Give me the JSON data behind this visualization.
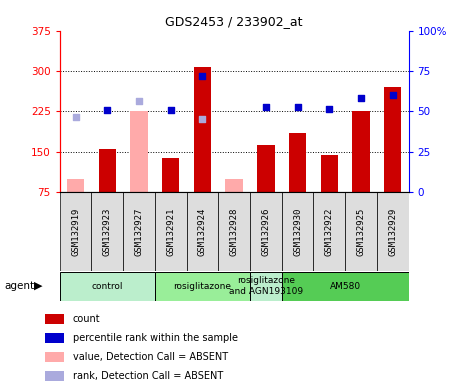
{
  "title": "GDS2453 / 233902_at",
  "samples": [
    "GSM132919",
    "GSM132923",
    "GSM132927",
    "GSM132921",
    "GSM132924",
    "GSM132928",
    "GSM132926",
    "GSM132930",
    "GSM132922",
    "GSM132925",
    "GSM132929"
  ],
  "count_values": [
    null,
    155,
    null,
    138,
    308,
    null,
    162,
    185,
    143,
    225,
    270
  ],
  "count_absent": [
    100,
    null,
    225,
    null,
    null,
    100,
    null,
    null,
    null,
    null,
    null
  ],
  "rank_values": [
    null,
    228,
    null,
    228,
    290,
    null,
    233,
    233,
    230,
    250,
    255
  ],
  "rank_absent": [
    215,
    null,
    245,
    null,
    210,
    null,
    null,
    null,
    null,
    null,
    null
  ],
  "ylim_left": [
    75,
    375
  ],
  "ylim_right": [
    0,
    100
  ],
  "yticks_left": [
    75,
    150,
    225,
    300,
    375
  ],
  "ytick_labels_left": [
    "75",
    "150",
    "225",
    "300",
    "375"
  ],
  "yticks_right": [
    0,
    25,
    50,
    75,
    100
  ],
  "ytick_labels_right": [
    "0",
    "25",
    "50",
    "75",
    "100%"
  ],
  "groups": [
    {
      "label": "control",
      "start": 0,
      "end": 3,
      "color": "#bbeecc"
    },
    {
      "label": "rosiglitazone",
      "start": 3,
      "end": 6,
      "color": "#99ee99"
    },
    {
      "label": "rosiglitazone\nand AGN193109",
      "start": 6,
      "end": 7,
      "color": "#bbeecc"
    },
    {
      "label": "AM580",
      "start": 7,
      "end": 11,
      "color": "#55cc55"
    }
  ],
  "bar_color_present": "#cc0000",
  "bar_color_absent": "#ffaaaa",
  "dot_color_present": "#0000cc",
  "dot_color_absent": "#aaaadd",
  "bar_width": 0.55,
  "agent_label": "agent",
  "legend_items": [
    {
      "color": "#cc0000",
      "label": "count"
    },
    {
      "color": "#0000cc",
      "label": "percentile rank within the sample"
    },
    {
      "color": "#ffaaaa",
      "label": "value, Detection Call = ABSENT"
    },
    {
      "color": "#aaaadd",
      "label": "rank, Detection Call = ABSENT"
    }
  ]
}
